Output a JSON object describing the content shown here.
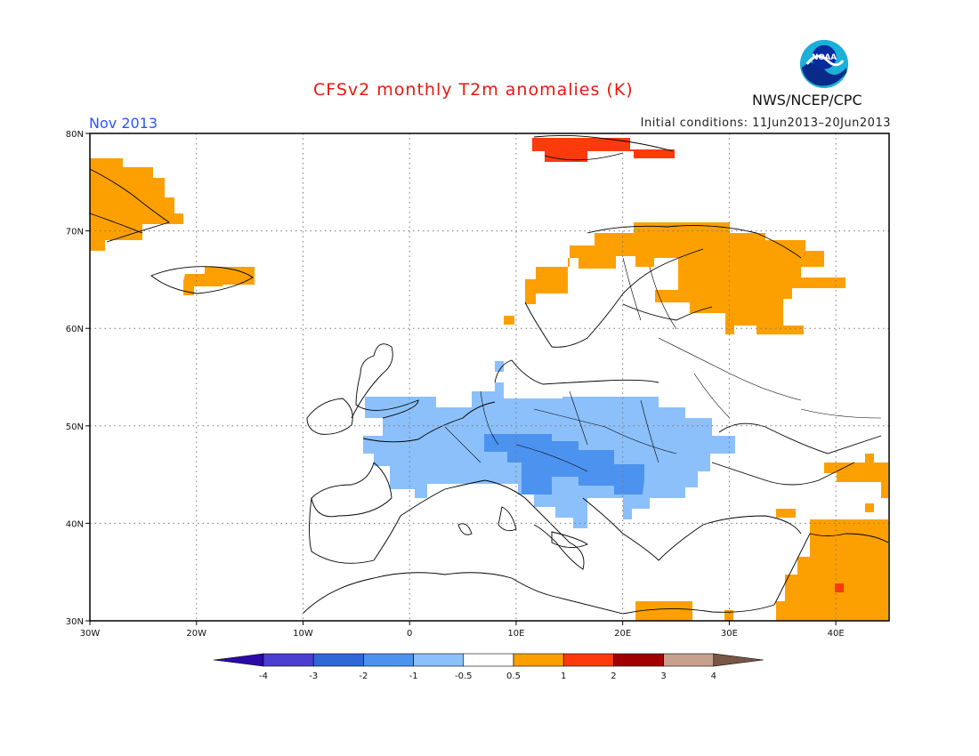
{
  "title": "CFSv2 monthly T2m anomalies (K)",
  "month": "Nov 2013",
  "initial_conditions": "Initial conditions: 11Jun2013–20Jun2013",
  "agency": "NWS/NCEP/CPC",
  "logo_text": "NOAA",
  "map": {
    "lon_range": [
      -30,
      45
    ],
    "lat_range": [
      30,
      80
    ],
    "grid": true,
    "lon_ticks": [
      "30W",
      "20W",
      "10W",
      "0",
      "10E",
      "20E",
      "30E",
      "40E"
    ],
    "lat_ticks": [
      "30N",
      "40N",
      "50N",
      "60N",
      "70N",
      "80N"
    ]
  },
  "colorbar": {
    "labels": [
      "-4",
      "-3",
      "-2",
      "-1",
      "-0.5",
      "0.5",
      "1",
      "2",
      "3",
      "4"
    ],
    "colors": [
      "#2a0aa8",
      "#4a3fd0",
      "#2f66d8",
      "#4c92ef",
      "#8cc0fa",
      "#ffffff",
      "#fba000",
      "#fd3a0c",
      "#a10000",
      "#c8a08e",
      "#7a5646"
    ]
  },
  "colors": {
    "title": "#e8190f",
    "month": "#2a55ff",
    "warm": "#fba000",
    "hot": "#fd3a0c",
    "cool": "#8cc0fa",
    "cold": "#4c92ef"
  }
}
